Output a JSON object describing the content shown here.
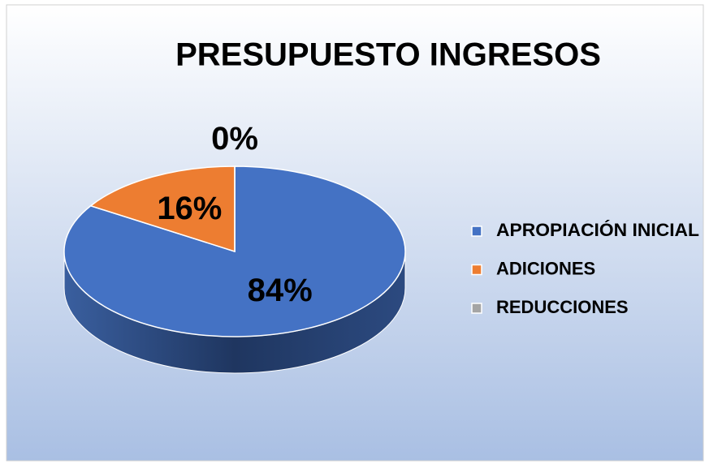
{
  "chart_data": {
    "type": "pie",
    "title": "PRESUPUESTO INGRESOS",
    "categories": [
      "APROPIACIÓN INICIAL",
      "ADICIONES",
      "REDUCCIONES"
    ],
    "values": [
      84,
      16,
      0
    ],
    "value_labels": [
      "84%",
      "16%",
      "0%"
    ],
    "colors": [
      "#4472c4",
      "#ed7d31",
      "#a5a5a5"
    ],
    "legend": "right"
  }
}
